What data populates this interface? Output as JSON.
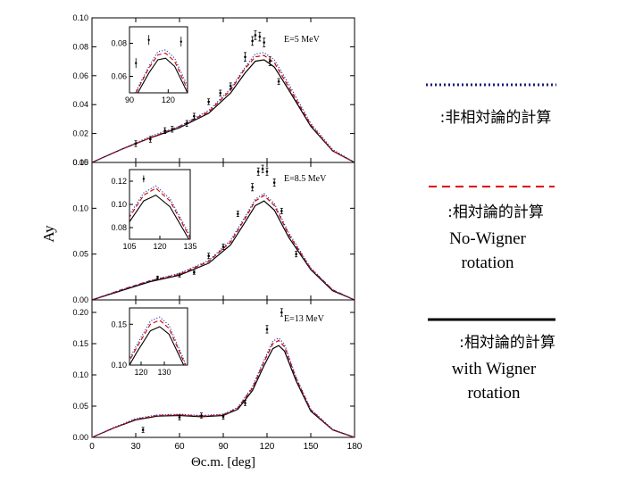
{
  "chart_data": [
    {
      "type": "line",
      "annotation": "E=5 MeV",
      "xlim": [
        0,
        180
      ],
      "ylim": [
        0,
        0.1
      ],
      "yticks": [
        "0.00",
        "0.02",
        "0.04",
        "0.06",
        "0.08",
        "0.10"
      ],
      "xticks": [],
      "series": [
        {
          "style": "solid",
          "color": "#000000",
          "x": [
            0,
            20,
            40,
            60,
            80,
            95,
            105,
            112,
            118,
            125,
            135,
            150,
            165,
            180
          ],
          "y": [
            0.0,
            0.009,
            0.017,
            0.024,
            0.034,
            0.048,
            0.062,
            0.07,
            0.071,
            0.066,
            0.05,
            0.025,
            0.008,
            0.0
          ]
        },
        {
          "style": "dashed",
          "color": "#cc0000",
          "x": [
            0,
            20,
            40,
            60,
            80,
            95,
            105,
            112,
            118,
            125,
            135,
            150,
            165,
            180
          ],
          "y": [
            0.0,
            0.009,
            0.017,
            0.025,
            0.035,
            0.05,
            0.065,
            0.073,
            0.074,
            0.069,
            0.052,
            0.026,
            0.008,
            0.0
          ]
        },
        {
          "style": "dotted",
          "color": "#3333aa",
          "x": [
            0,
            20,
            40,
            60,
            80,
            95,
            105,
            112,
            118,
            125,
            135,
            150,
            165,
            180
          ],
          "y": [
            0.0,
            0.009,
            0.018,
            0.025,
            0.036,
            0.051,
            0.066,
            0.075,
            0.076,
            0.071,
            0.054,
            0.027,
            0.009,
            0.0
          ]
        }
      ],
      "data_points": {
        "x": [
          30,
          40,
          50,
          55,
          65,
          70,
          80,
          88,
          95,
          105,
          110,
          112,
          115,
          118,
          122,
          128
        ],
        "y": [
          0.013,
          0.016,
          0.022,
          0.023,
          0.027,
          0.032,
          0.042,
          0.048,
          0.053,
          0.073,
          0.084,
          0.088,
          0.087,
          0.083,
          0.07,
          0.056
        ],
        "err": [
          0.002,
          0.002,
          0.002,
          0.002,
          0.002,
          0.002,
          0.002,
          0.002,
          0.002,
          0.003,
          0.003,
          0.003,
          0.003,
          0.003,
          0.003,
          0.002
        ]
      },
      "inset": {
        "xlim": [
          90,
          135
        ],
        "ylim": [
          0.05,
          0.09
        ],
        "xticks": [
          "90",
          "120"
        ],
        "yticks": [
          "0.06",
          "0.08"
        ],
        "points": {
          "x": [
            95,
            105,
            130
          ],
          "y": [
            0.068,
            0.082,
            0.081
          ],
          "err": [
            0.003,
            0.003,
            0.003
          ]
        }
      }
    },
    {
      "type": "line",
      "annotation": "E=8.5 MeV",
      "xlim": [
        0,
        180
      ],
      "ylim": [
        0,
        0.15
      ],
      "yticks": [
        "0.00",
        "0.05",
        "0.10",
        "0.15"
      ],
      "xticks": [],
      "series": [
        {
          "style": "solid",
          "color": "#000000",
          "x": [
            0,
            20,
            40,
            60,
            80,
            95,
            105,
            112,
            118,
            125,
            135,
            150,
            165,
            180
          ],
          "y": [
            0.0,
            0.01,
            0.02,
            0.027,
            0.04,
            0.06,
            0.085,
            0.103,
            0.108,
            0.098,
            0.068,
            0.033,
            0.01,
            0.0
          ]
        },
        {
          "style": "dashed",
          "color": "#cc0000",
          "x": [
            0,
            20,
            40,
            60,
            80,
            95,
            105,
            112,
            118,
            125,
            135,
            150,
            165,
            180
          ],
          "y": [
            0.0,
            0.011,
            0.021,
            0.028,
            0.042,
            0.063,
            0.089,
            0.108,
            0.114,
            0.103,
            0.071,
            0.034,
            0.011,
            0.0
          ]
        },
        {
          "style": "dotted",
          "color": "#3333aa",
          "x": [
            0,
            20,
            40,
            60,
            80,
            95,
            105,
            112,
            118,
            125,
            135,
            150,
            165,
            180
          ],
          "y": [
            0.0,
            0.011,
            0.021,
            0.029,
            0.043,
            0.065,
            0.091,
            0.11,
            0.116,
            0.105,
            0.073,
            0.035,
            0.011,
            0.0
          ]
        }
      ],
      "data_points": {
        "x": [
          45,
          60,
          70,
          80,
          90,
          100,
          110,
          114,
          117,
          120,
          125,
          130,
          140
        ],
        "y": [
          0.024,
          0.027,
          0.03,
          0.048,
          0.058,
          0.094,
          0.123,
          0.14,
          0.143,
          0.14,
          0.128,
          0.097,
          0.05
        ],
        "err": [
          0.002,
          0.002,
          0.002,
          0.003,
          0.003,
          0.003,
          0.004,
          0.004,
          0.004,
          0.004,
          0.004,
          0.003,
          0.003
        ]
      },
      "inset": {
        "xlim": [
          105,
          135
        ],
        "ylim": [
          0.07,
          0.13
        ],
        "xticks": [
          "105",
          "120",
          "135"
        ],
        "yticks": [
          "0.08",
          "0.10",
          "0.12"
        ],
        "points": {
          "x": [
            112
          ],
          "y": [
            0.122
          ],
          "err": [
            0.003
          ]
        }
      }
    },
    {
      "type": "line",
      "annotation": "E=13 MeV",
      "xlim": [
        0,
        180
      ],
      "ylim": [
        0,
        0.22
      ],
      "yticks": [
        "0.00",
        "0.05",
        "0.10",
        "0.15",
        "0.20"
      ],
      "xticks": [
        "0",
        "30",
        "60",
        "90",
        "120",
        "150",
        "180"
      ],
      "xlabel": "Θc.m. [deg]",
      "series": [
        {
          "style": "solid",
          "color": "#000000",
          "x": [
            0,
            15,
            30,
            45,
            60,
            75,
            90,
            100,
            110,
            118,
            124,
            128,
            132,
            140,
            150,
            165,
            180
          ],
          "y": [
            0.0,
            0.015,
            0.028,
            0.034,
            0.035,
            0.033,
            0.035,
            0.045,
            0.075,
            0.115,
            0.142,
            0.147,
            0.138,
            0.09,
            0.042,
            0.012,
            0.0
          ]
        },
        {
          "style": "dashed",
          "color": "#cc0000",
          "x": [
            0,
            15,
            30,
            45,
            60,
            75,
            90,
            100,
            110,
            118,
            124,
            128,
            132,
            140,
            150,
            165,
            180
          ],
          "y": [
            0.0,
            0.015,
            0.029,
            0.035,
            0.036,
            0.034,
            0.036,
            0.047,
            0.079,
            0.121,
            0.15,
            0.155,
            0.145,
            0.094,
            0.044,
            0.012,
            0.0
          ]
        },
        {
          "style": "dotted",
          "color": "#3333aa",
          "x": [
            0,
            15,
            30,
            45,
            60,
            75,
            90,
            100,
            110,
            118,
            124,
            128,
            132,
            140,
            150,
            165,
            180
          ],
          "y": [
            0.0,
            0.016,
            0.03,
            0.036,
            0.037,
            0.035,
            0.037,
            0.048,
            0.081,
            0.124,
            0.154,
            0.159,
            0.149,
            0.096,
            0.045,
            0.013,
            0.0
          ]
        }
      ],
      "data_points": {
        "x": [
          35,
          60,
          75,
          90,
          105,
          120,
          130
        ],
        "y": [
          0.012,
          0.032,
          0.035,
          0.033,
          0.055,
          0.173,
          0.2
        ],
        "err": [
          0.004,
          0.004,
          0.004,
          0.004,
          0.004,
          0.006,
          0.006
        ]
      },
      "inset": {
        "xlim": [
          115,
          140
        ],
        "ylim": [
          0.1,
          0.17
        ],
        "xticks": [
          "120",
          "130"
        ],
        "yticks": [
          "0.10",
          "0.15"
        ],
        "points": {
          "x": [],
          "y": [],
          "err": []
        }
      }
    }
  ],
  "axes": {
    "ylabel": "Ay",
    "xlabel": "Θc.m. [deg]"
  },
  "legend": [
    {
      "style": "dotted",
      "color": "#1a1a7a",
      "lines": [
        ":非相対論的計算"
      ]
    },
    {
      "style": "dashed",
      "color": "#dd0000",
      "lines": [
        ":相対論的計算",
        "No-Wigner",
        "rotation"
      ]
    },
    {
      "style": "solid",
      "color": "#000000",
      "lines": [
        ":相対論的計算",
        "with Wigner",
        "rotation"
      ]
    }
  ]
}
